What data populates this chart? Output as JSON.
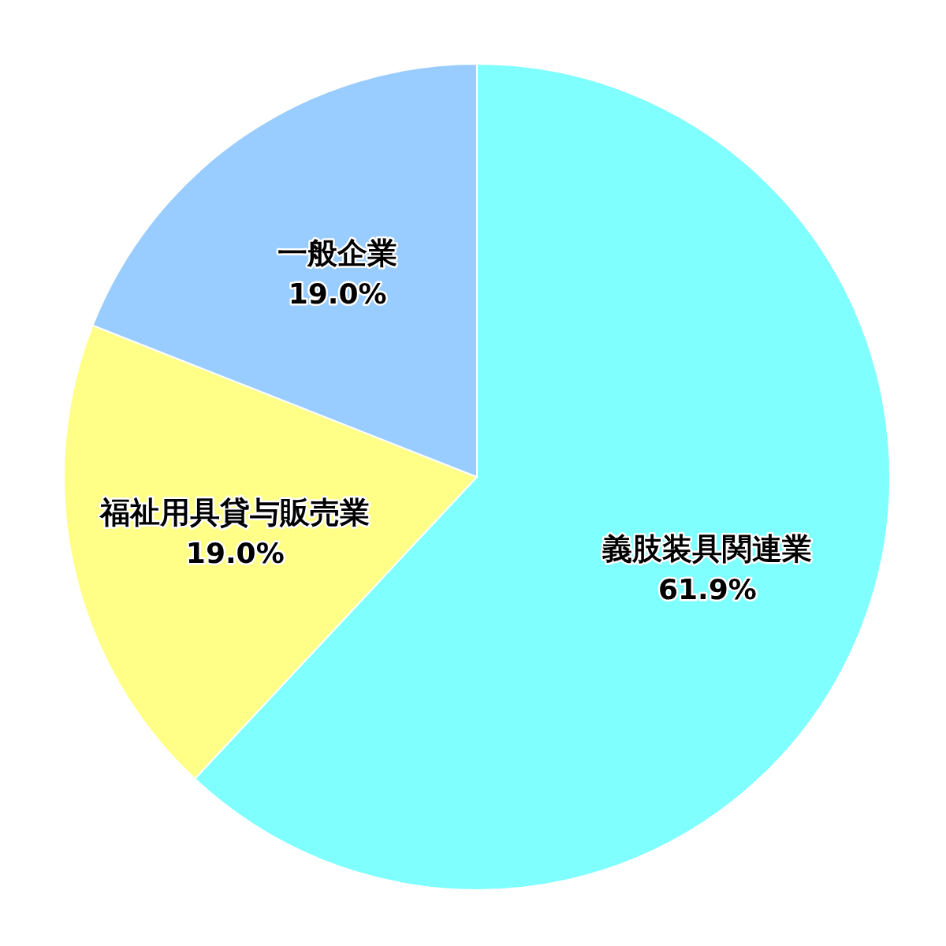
{
  "chart_data": {
    "type": "pie",
    "categories": [
      "義肢装具関連業",
      "福祉用具貸与販売業",
      "一般企業"
    ],
    "values": [
      61.9,
      19.0,
      19.0
    ],
    "value_labels": [
      "61.9%",
      "19.0%",
      "19.0%"
    ],
    "colors": [
      "#80ffff",
      "#ffff88",
      "#99ccff"
    ],
    "legend": false
  }
}
